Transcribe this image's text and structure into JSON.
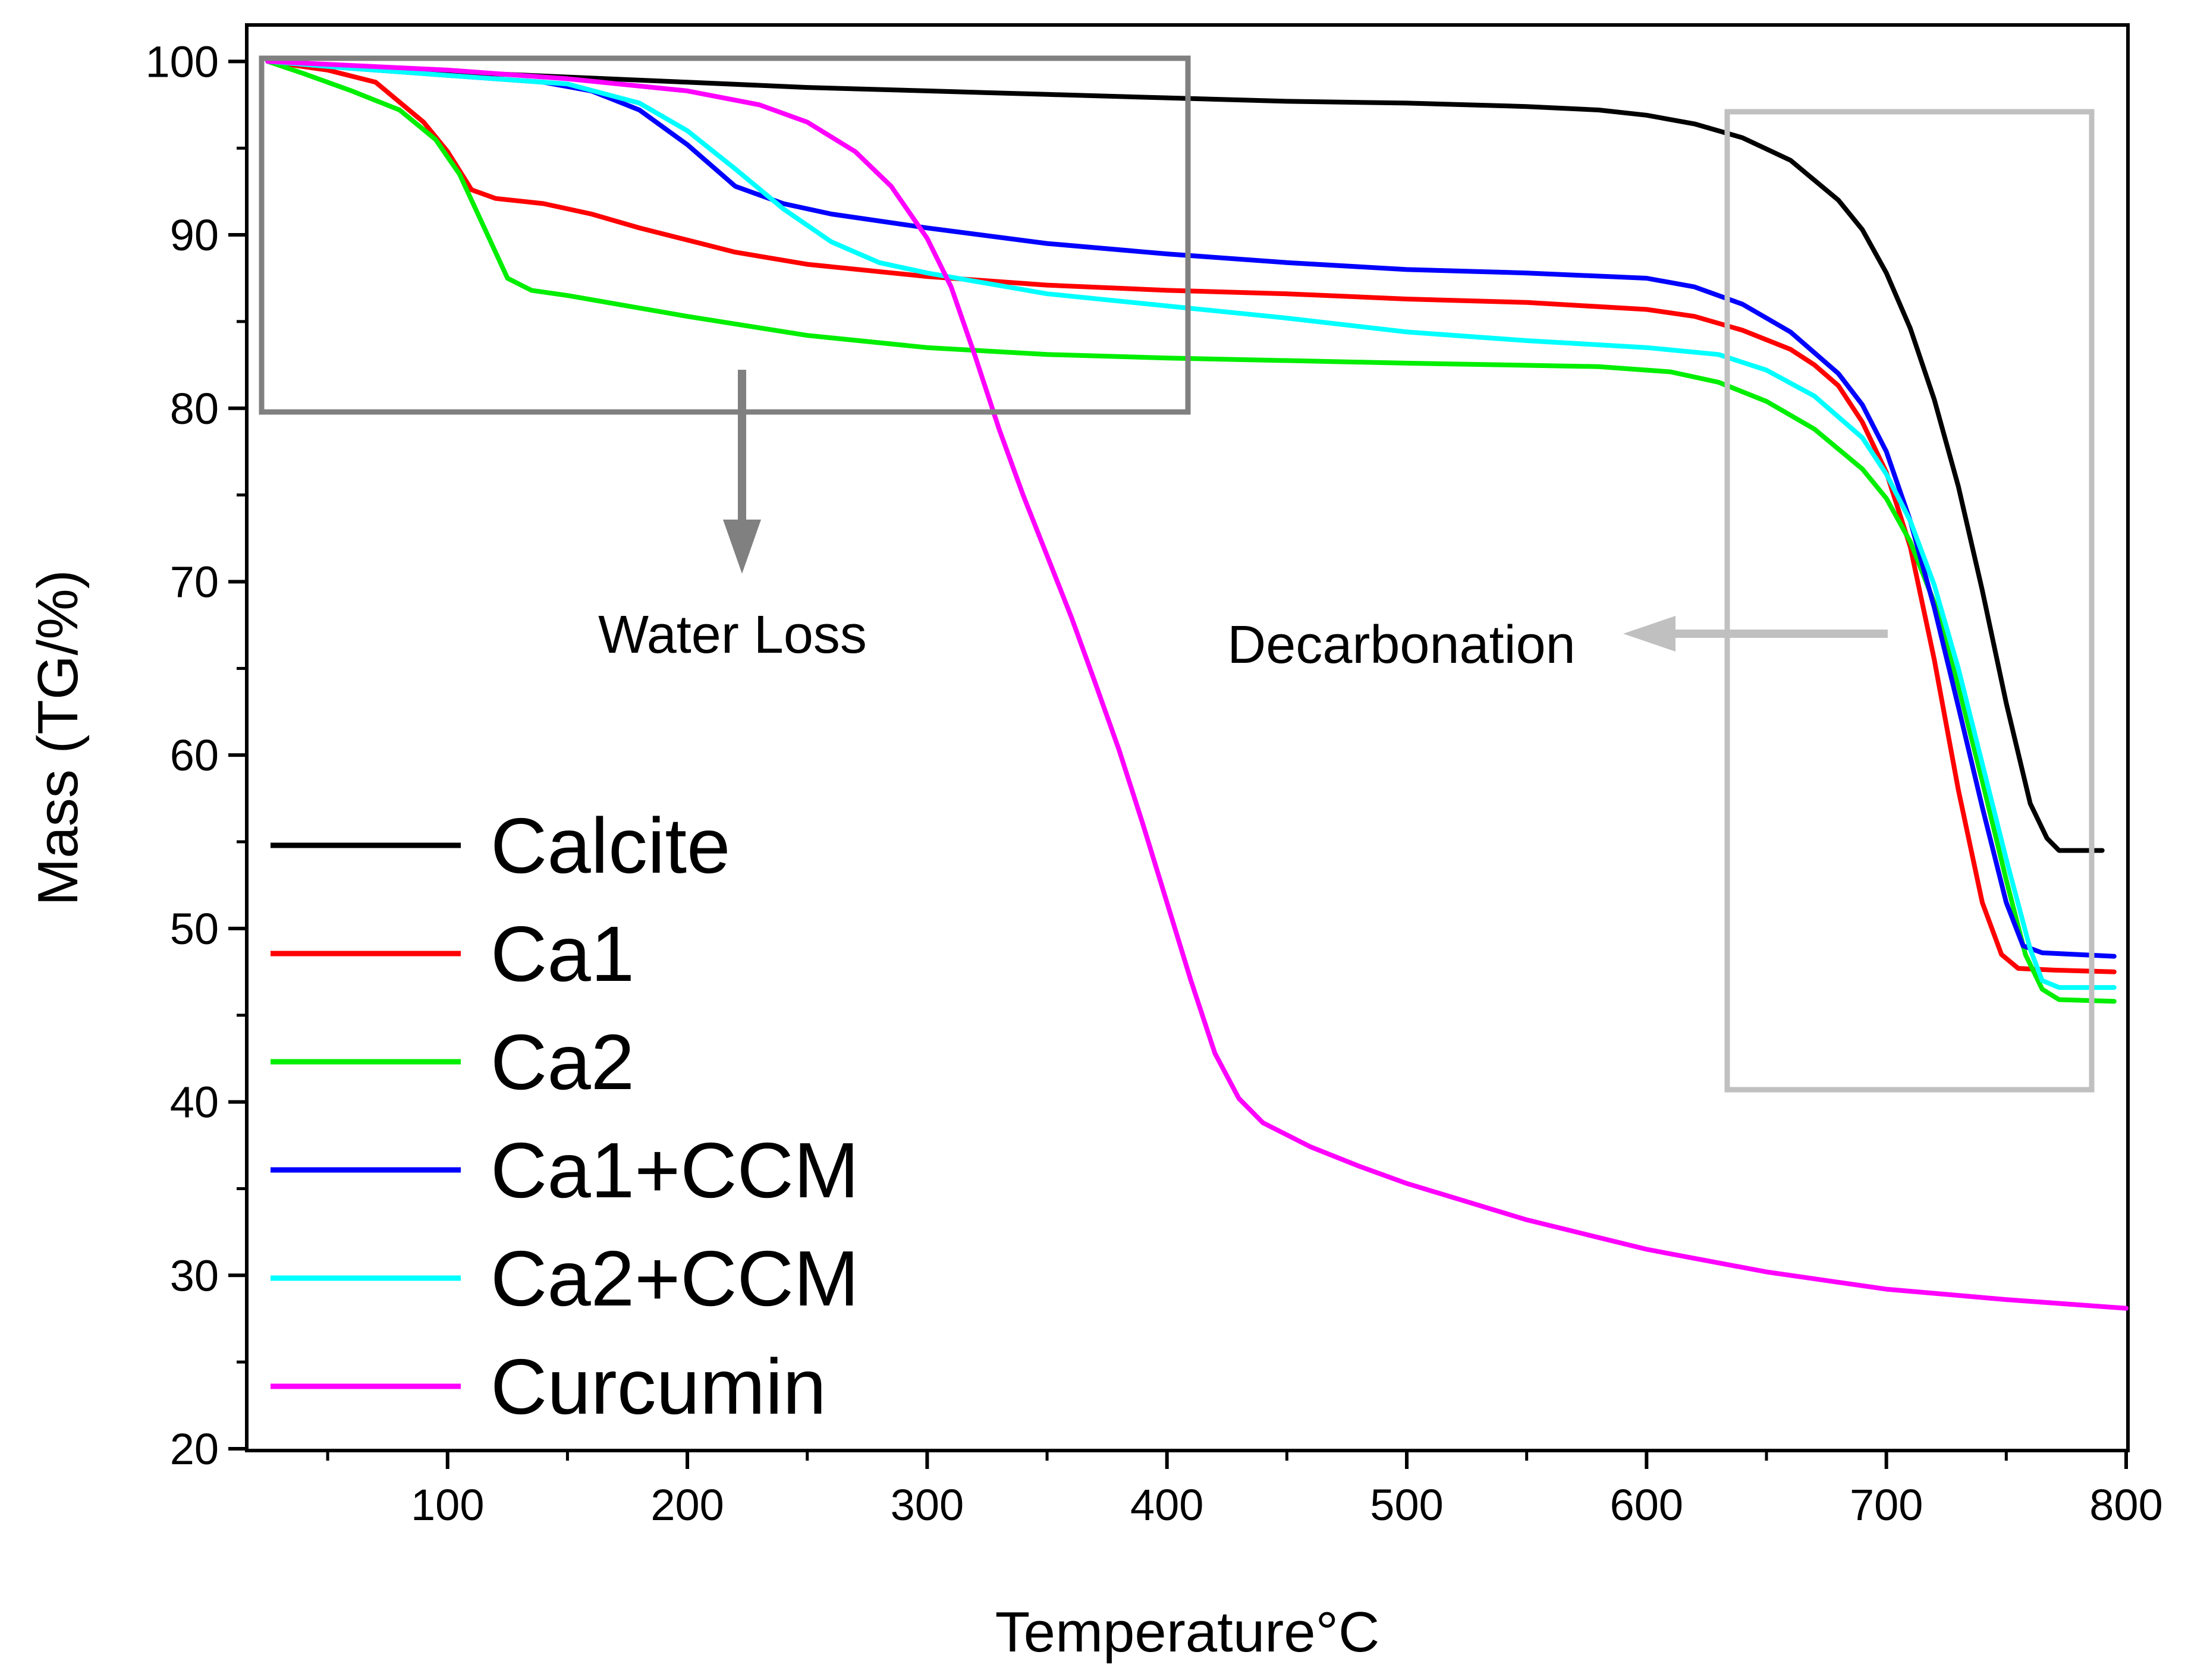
{
  "chart_data": {
    "type": "line",
    "title": "",
    "xlabel": "Temperature°C",
    "ylabel": "Mass (TG/%)",
    "xlim": [
      17,
      800
    ],
    "ylim": [
      20,
      102
    ],
    "x_ticks": [
      100,
      200,
      300,
      400,
      500,
      600,
      700,
      800
    ],
    "y_ticks": [
      20,
      30,
      40,
      50,
      60,
      70,
      80,
      90,
      100
    ],
    "x_tick_labels": [
      "100",
      "200",
      "300",
      "400",
      "500",
      "600",
      "700",
      "800"
    ],
    "y_tick_labels": [
      "20",
      "30",
      "40",
      "50",
      "60",
      "70",
      "80",
      "90",
      "100"
    ],
    "grid": false,
    "legend_position": "bottom-left",
    "series": [
      {
        "name": "Calcite",
        "color": "#000000",
        "points": [
          [
            25,
            100
          ],
          [
            50,
            99.8
          ],
          [
            100,
            99.4
          ],
          [
            150,
            99.1
          ],
          [
            200,
            98.8
          ],
          [
            250,
            98.5
          ],
          [
            300,
            98.3
          ],
          [
            350,
            98.1
          ],
          [
            400,
            97.9
          ],
          [
            450,
            97.7
          ],
          [
            500,
            97.6
          ],
          [
            550,
            97.4
          ],
          [
            580,
            97.2
          ],
          [
            600,
            96.9
          ],
          [
            620,
            96.4
          ],
          [
            640,
            95.6
          ],
          [
            660,
            94.3
          ],
          [
            680,
            92.0
          ],
          [
            690,
            90.3
          ],
          [
            700,
            87.8
          ],
          [
            710,
            84.6
          ],
          [
            720,
            80.5
          ],
          [
            730,
            75.5
          ],
          [
            740,
            69.5
          ],
          [
            750,
            63.0
          ],
          [
            760,
            57.2
          ],
          [
            767,
            55.2
          ],
          [
            772,
            54.5
          ],
          [
            790,
            54.5
          ]
        ]
      },
      {
        "name": "Ca1",
        "color": "#ff0000",
        "points": [
          [
            25,
            100
          ],
          [
            50,
            99.5
          ],
          [
            70,
            98.8
          ],
          [
            90,
            96.5
          ],
          [
            100,
            94.8
          ],
          [
            110,
            92.6
          ],
          [
            120,
            92.1
          ],
          [
            140,
            91.8
          ],
          [
            160,
            91.2
          ],
          [
            180,
            90.4
          ],
          [
            200,
            89.7
          ],
          [
            220,
            89.0
          ],
          [
            250,
            88.3
          ],
          [
            300,
            87.6
          ],
          [
            350,
            87.1
          ],
          [
            400,
            86.8
          ],
          [
            450,
            86.6
          ],
          [
            500,
            86.3
          ],
          [
            550,
            86.1
          ],
          [
            600,
            85.7
          ],
          [
            620,
            85.3
          ],
          [
            640,
            84.5
          ],
          [
            660,
            83.4
          ],
          [
            670,
            82.5
          ],
          [
            680,
            81.3
          ],
          [
            690,
            79.2
          ],
          [
            700,
            76.3
          ],
          [
            710,
            72.0
          ],
          [
            720,
            65.5
          ],
          [
            730,
            58.0
          ],
          [
            740,
            51.5
          ],
          [
            748,
            48.5
          ],
          [
            755,
            47.7
          ],
          [
            770,
            47.6
          ],
          [
            795,
            47.5
          ]
        ]
      },
      {
        "name": "Ca2",
        "color": "#00ee00",
        "points": [
          [
            25,
            100
          ],
          [
            40,
            99.3
          ],
          [
            60,
            98.3
          ],
          [
            80,
            97.2
          ],
          [
            95,
            95.5
          ],
          [
            105,
            93.5
          ],
          [
            115,
            90.5
          ],
          [
            125,
            87.5
          ],
          [
            135,
            86.8
          ],
          [
            150,
            86.5
          ],
          [
            200,
            85.3
          ],
          [
            250,
            84.2
          ],
          [
            300,
            83.5
          ],
          [
            350,
            83.1
          ],
          [
            400,
            82.9
          ],
          [
            500,
            82.6
          ],
          [
            580,
            82.4
          ],
          [
            610,
            82.1
          ],
          [
            630,
            81.5
          ],
          [
            650,
            80.4
          ],
          [
            670,
            78.8
          ],
          [
            690,
            76.5
          ],
          [
            700,
            74.8
          ],
          [
            710,
            72.3
          ],
          [
            720,
            68.8
          ],
          [
            730,
            64.0
          ],
          [
            740,
            58.5
          ],
          [
            750,
            52.8
          ],
          [
            758,
            48.5
          ],
          [
            765,
            46.5
          ],
          [
            772,
            45.9
          ],
          [
            795,
            45.8
          ]
        ]
      },
      {
        "name": "Ca1+CCM",
        "color": "#0000ff",
        "points": [
          [
            25,
            100
          ],
          [
            60,
            99.6
          ],
          [
            100,
            99.2
          ],
          [
            140,
            98.8
          ],
          [
            160,
            98.3
          ],
          [
            180,
            97.2
          ],
          [
            200,
            95.2
          ],
          [
            220,
            92.8
          ],
          [
            240,
            91.8
          ],
          [
            260,
            91.2
          ],
          [
            300,
            90.4
          ],
          [
            350,
            89.5
          ],
          [
            400,
            88.9
          ],
          [
            450,
            88.4
          ],
          [
            500,
            88.0
          ],
          [
            550,
            87.8
          ],
          [
            600,
            87.5
          ],
          [
            620,
            87.0
          ],
          [
            640,
            86.0
          ],
          [
            660,
            84.4
          ],
          [
            680,
            82.0
          ],
          [
            690,
            80.2
          ],
          [
            700,
            77.5
          ],
          [
            710,
            73.5
          ],
          [
            720,
            68.5
          ],
          [
            730,
            62.8
          ],
          [
            740,
            57.0
          ],
          [
            750,
            51.5
          ],
          [
            757,
            49.0
          ],
          [
            765,
            48.6
          ],
          [
            795,
            48.4
          ]
        ]
      },
      {
        "name": "Ca2+CCM",
        "color": "#00ffff",
        "points": [
          [
            25,
            100
          ],
          [
            60,
            99.6
          ],
          [
            100,
            99.2
          ],
          [
            150,
            98.7
          ],
          [
            180,
            97.6
          ],
          [
            200,
            96.0
          ],
          [
            220,
            93.8
          ],
          [
            240,
            91.5
          ],
          [
            260,
            89.6
          ],
          [
            280,
            88.4
          ],
          [
            300,
            87.8
          ],
          [
            350,
            86.6
          ],
          [
            400,
            85.9
          ],
          [
            450,
            85.2
          ],
          [
            500,
            84.4
          ],
          [
            550,
            83.9
          ],
          [
            600,
            83.5
          ],
          [
            630,
            83.1
          ],
          [
            650,
            82.2
          ],
          [
            670,
            80.7
          ],
          [
            690,
            78.3
          ],
          [
            700,
            76.2
          ],
          [
            710,
            73.5
          ],
          [
            720,
            69.8
          ],
          [
            730,
            65.0
          ],
          [
            740,
            59.5
          ],
          [
            750,
            54.0
          ],
          [
            760,
            48.8
          ],
          [
            765,
            47.0
          ],
          [
            772,
            46.6
          ],
          [
            795,
            46.6
          ]
        ]
      },
      {
        "name": "Curcumin",
        "color": "#ff00ff",
        "points": [
          [
            25,
            100
          ],
          [
            100,
            99.5
          ],
          [
            150,
            99.0
          ],
          [
            200,
            98.3
          ],
          [
            230,
            97.5
          ],
          [
            250,
            96.5
          ],
          [
            270,
            94.8
          ],
          [
            285,
            92.8
          ],
          [
            300,
            89.8
          ],
          [
            310,
            87.0
          ],
          [
            320,
            83.0
          ],
          [
            330,
            78.8
          ],
          [
            340,
            75.0
          ],
          [
            350,
            71.5
          ],
          [
            360,
            68.0
          ],
          [
            370,
            64.2
          ],
          [
            380,
            60.3
          ],
          [
            390,
            56.0
          ],
          [
            400,
            51.5
          ],
          [
            410,
            47.0
          ],
          [
            420,
            42.8
          ],
          [
            430,
            40.2
          ],
          [
            440,
            38.8
          ],
          [
            460,
            37.4
          ],
          [
            480,
            36.3
          ],
          [
            500,
            35.3
          ],
          [
            550,
            33.2
          ],
          [
            600,
            31.5
          ],
          [
            650,
            30.2
          ],
          [
            700,
            29.2
          ],
          [
            750,
            28.6
          ],
          [
            800,
            28.1
          ]
        ]
      }
    ],
    "annotations": {
      "water_loss": "Water Loss",
      "decarbonation": "Decarbonation"
    }
  }
}
